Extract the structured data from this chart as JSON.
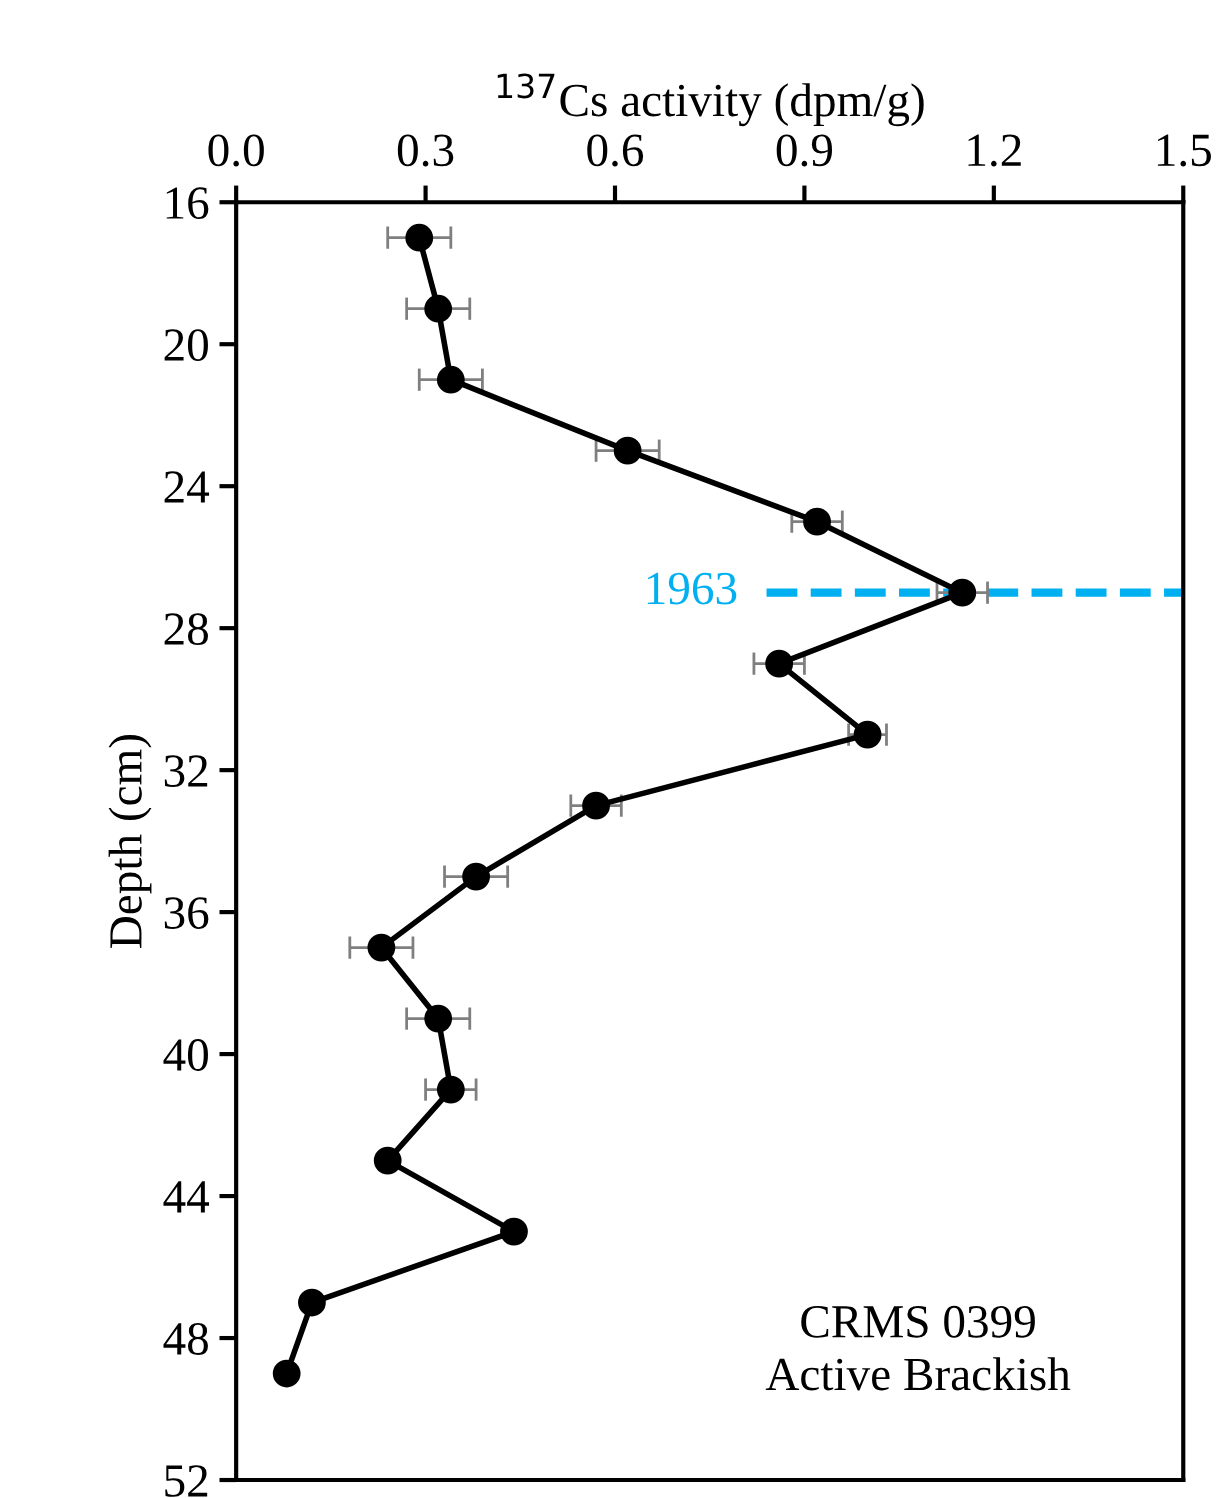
{
  "chart_data": {
    "type": "line",
    "xlabel": "$^{137}$Cs activity (dpm/g)",
    "ylabel": "Depth (cm)",
    "series": [
      {
        "color": "#000000",
        "x": [
          0.29,
          0.32,
          0.34,
          0.62,
          0.92,
          1.15,
          0.86,
          1.0,
          0.57,
          0.38,
          0.23,
          0.32,
          0.34,
          0.24,
          0.44,
          0.12,
          0.08
        ],
        "values": [
          17,
          19,
          21,
          23,
          25,
          27,
          29,
          31,
          33,
          35,
          37,
          39,
          41,
          43,
          45,
          47,
          49
        ],
        "xerrors": [
          0.05,
          0.05,
          0.05,
          0.05,
          0.04,
          0.04,
          0.04,
          0.03,
          0.04,
          0.05,
          0.05,
          0.05,
          0.04,
          null,
          null,
          null,
          null
        ]
      }
    ],
    "xlim": [
      0,
      1.5
    ],
    "xticks": [
      {
        "value": 0,
        "label": "0.0"
      },
      0.3,
      0.6,
      0.9,
      1.2,
      1.5
    ],
    "ylim": [
      52,
      16
    ],
    "yticks": [
      16,
      20,
      24,
      28,
      32,
      36,
      40,
      44,
      48,
      52
    ],
    "marker": "circle",
    "line_style": "solid",
    "grid": false,
    "legend": false,
    "ref_lines": [
      {
        "axis": "y",
        "value": 27,
        "color": "#00b0f0",
        "line_style": "dashed"
      }
    ],
    "annotations": [
      "1963",
      "CRMS 0399\nActive Brackish"
    ]
  }
}
